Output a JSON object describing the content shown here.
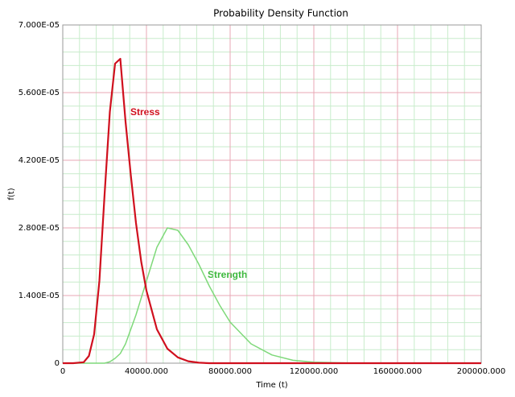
{
  "chart_data": {
    "type": "line",
    "title": "Probability Density Function",
    "x_label": "Time (t)",
    "y_label": "f(t)",
    "x": [
      0,
      5000,
      10000,
      12500,
      15000,
      17500,
      20000,
      22500,
      25000,
      27500,
      30000,
      32500,
      35000,
      37500,
      40000,
      45000,
      50000,
      55000,
      60000,
      65000,
      70000,
      75000,
      80000,
      90000,
      100000,
      110000,
      120000,
      140000,
      160000,
      180000,
      200000
    ],
    "series": [
      {
        "name": "Stress",
        "color": "#d0101e",
        "values": [
          0,
          0,
          2e-07,
          1.5e-06,
          6e-06,
          1.7e-05,
          3.5e-05,
          5.2e-05,
          6.2e-05,
          6.3e-05,
          5e-05,
          3.9e-05,
          2.9e-05,
          2.1e-05,
          1.5e-05,
          7e-06,
          3e-06,
          1.2e-06,
          4e-07,
          1e-07,
          0,
          0,
          0,
          0,
          0,
          0,
          0,
          0,
          0,
          0,
          0
        ]
      },
      {
        "name": "Strength",
        "color": "#7fd97a",
        "values": [
          0,
          0,
          0,
          0,
          0,
          0,
          0,
          3e-07,
          1e-06,
          2e-06,
          4e-06,
          7e-06,
          1e-05,
          1.35e-05,
          1.7e-05,
          2.4e-05,
          2.8e-05,
          2.75e-05,
          2.45e-05,
          2.05e-05,
          1.6e-05,
          1.2e-05,
          8.5e-06,
          4e-06,
          1.7e-06,
          6e-07,
          2e-07,
          0,
          0,
          0,
          0
        ]
      }
    ],
    "annotations": [
      {
        "text": "Stress",
        "color": "#d0101e"
      },
      {
        "text": "Strength",
        "color": "#3db83d"
      }
    ],
    "xlim": [
      0,
      200000
    ],
    "xticks": [
      0,
      {
        "value": 40000,
        "label": "40000.000"
      },
      {
        "value": 80000,
        "label": "80000.000"
      },
      {
        "value": 120000,
        "label": "120000.000"
      },
      {
        "value": 160000,
        "label": "160000.000"
      },
      {
        "value": 200000,
        "label": "200000.000"
      }
    ],
    "ylim": [
      0,
      7e-05
    ],
    "yticks": [
      0,
      {
        "value": 1.4e-05,
        "label": "1.400E-05"
      },
      {
        "value": 2.8e-05,
        "label": "2.800E-05"
      },
      {
        "value": 4.2e-05,
        "label": "4.200E-05"
      },
      {
        "value": 5.6e-05,
        "label": "5.600E-05"
      },
      {
        "value": 7e-05,
        "label": "7.000E-05"
      }
    ],
    "grid": true
  }
}
